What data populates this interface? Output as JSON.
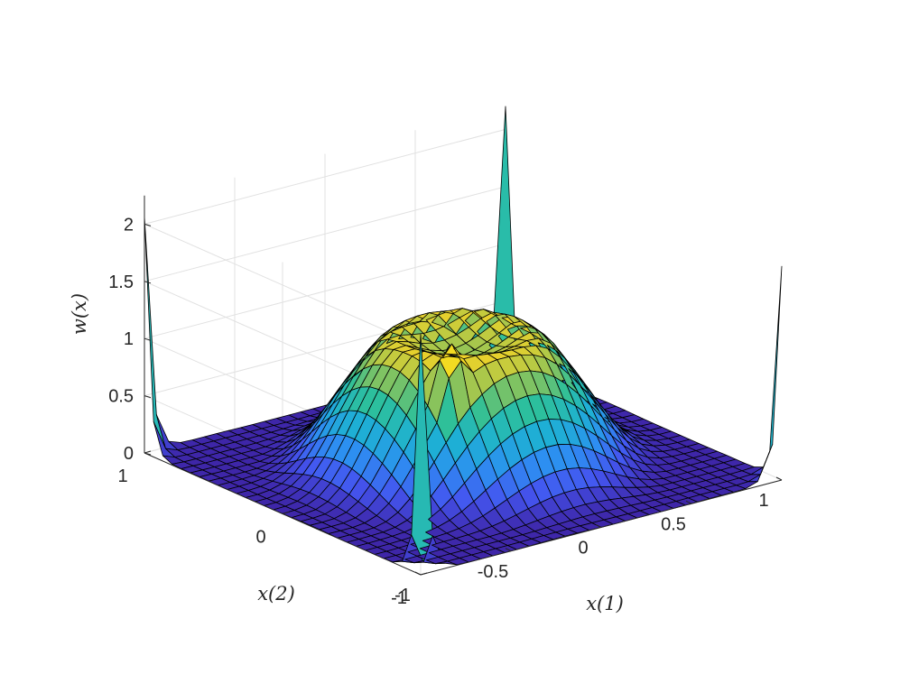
{
  "chart_data": {
    "type": "surface",
    "title": "",
    "xlabel": "x(1)",
    "ylabel": "x(2)",
    "zlabel": "w(x)",
    "xlim": [
      -1,
      1
    ],
    "ylim": [
      -1,
      1
    ],
    "zlim": [
      0,
      2.2
    ],
    "x_ticks": [
      -1,
      -0.5,
      0,
      0.5,
      1
    ],
    "x_tick_labels": [
      "-1",
      "-0.5",
      "0",
      "0.5",
      "1"
    ],
    "y_ticks": [
      -1,
      0,
      1
    ],
    "y_tick_labels": [
      "-1",
      "0",
      "1"
    ],
    "z_ticks": [
      0,
      0.5,
      1,
      1.5,
      2
    ],
    "z_tick_labels": [
      "0",
      "0.5",
      "1",
      "1.5",
      "2"
    ],
    "grid": true,
    "colormap": "parula",
    "colormap_stops": [
      "#3e26a8",
      "#4456f0",
      "#2d8ff1",
      "#1eb0d4",
      "#2dc09a",
      "#8cc35a",
      "#f2d227",
      "#f9fb0e"
    ],
    "edge_color": "#000000",
    "grid_resolution": 31,
    "surface": {
      "description_points": [
        {
          "x": 0,
          "y": 0,
          "z": 1.0
        },
        {
          "x": 0.25,
          "y": 0.25,
          "z": 1.18
        },
        {
          "x": -1,
          "y": -1,
          "z": 2.1
        },
        {
          "x": 1,
          "y": 1,
          "z": 2.2
        },
        {
          "x": -1,
          "y": 1,
          "z": 2.07
        },
        {
          "x": 1,
          "y": -1,
          "z": 1.87
        },
        {
          "x": -1,
          "y": 0,
          "z": 0.02
        },
        {
          "x": 0,
          "y": -1,
          "z": 0.0
        }
      ],
      "crease_peak": {
        "x": -0.3,
        "y": -0.3,
        "z": 1.36
      }
    }
  }
}
